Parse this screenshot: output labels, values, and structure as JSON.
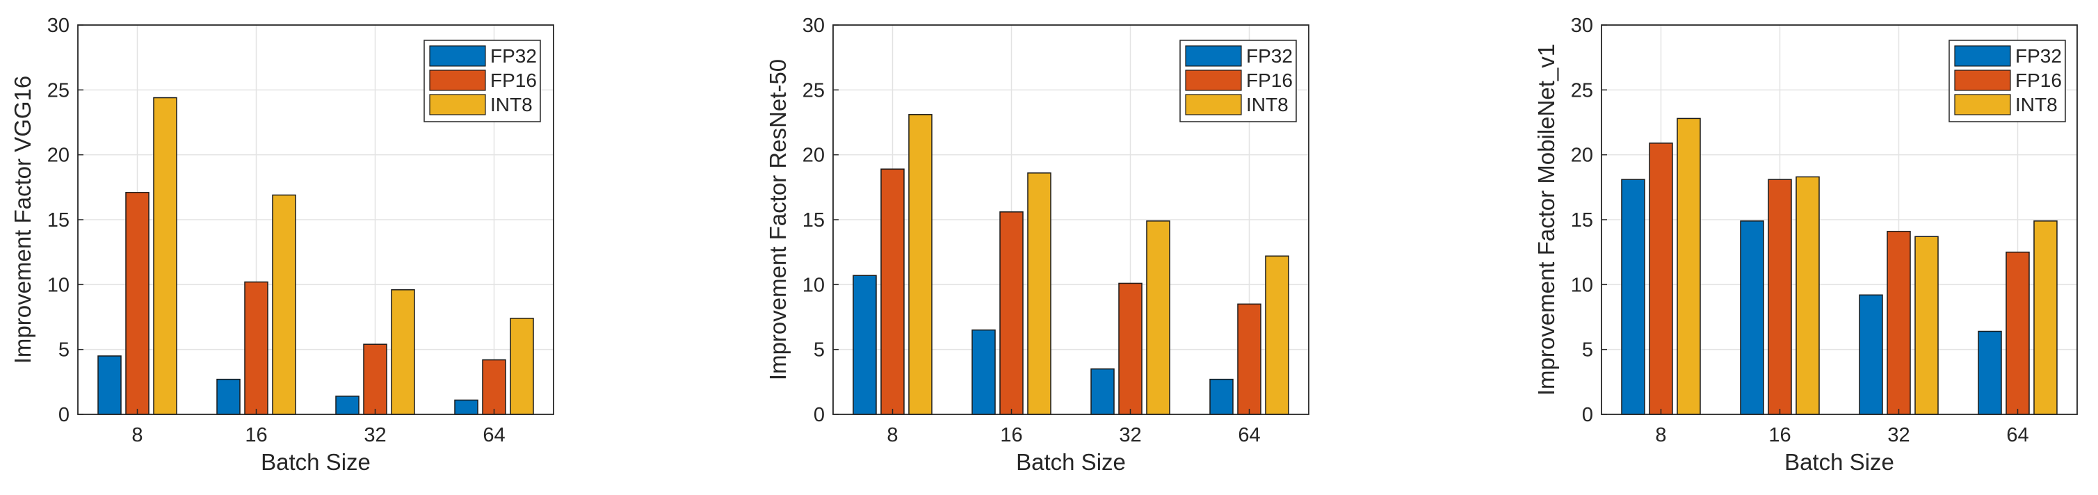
{
  "chart_data": [
    {
      "type": "bar",
      "title": "",
      "xlabel": "Batch Size",
      "ylabel": "Improvement Factor VGG16",
      "categories": [
        "8",
        "16",
        "32",
        "64"
      ],
      "ylim": [
        0,
        30
      ],
      "yticks": [
        "0",
        "5",
        "10",
        "15",
        "20",
        "25",
        "30"
      ],
      "grid": true,
      "legend_position": "top-right",
      "series": [
        {
          "name": "FP32",
          "values": [
            4.5,
            2.7,
            1.4,
            1.1
          ]
        },
        {
          "name": "FP16",
          "values": [
            17.1,
            10.2,
            5.4,
            4.2
          ]
        },
        {
          "name": "INT8",
          "values": [
            24.4,
            16.9,
            9.6,
            7.4
          ]
        }
      ]
    },
    {
      "type": "bar",
      "title": "",
      "xlabel": "Batch Size",
      "ylabel": "Improvement Factor ResNet-50",
      "categories": [
        "8",
        "16",
        "32",
        "64"
      ],
      "ylim": [
        0,
        30
      ],
      "yticks": [
        "0",
        "5",
        "10",
        "15",
        "20",
        "25",
        "30"
      ],
      "grid": true,
      "legend_position": "top-right",
      "series": [
        {
          "name": "FP32",
          "values": [
            10.7,
            6.5,
            3.5,
            2.7
          ]
        },
        {
          "name": "FP16",
          "values": [
            18.9,
            15.6,
            10.1,
            8.5
          ]
        },
        {
          "name": "INT8",
          "values": [
            23.1,
            18.6,
            14.9,
            12.2
          ]
        }
      ]
    },
    {
      "type": "bar",
      "title": "",
      "xlabel": "Batch Size",
      "ylabel": "Improvement Factor MobileNet_v1",
      "categories": [
        "8",
        "16",
        "32",
        "64"
      ],
      "ylim": [
        0,
        30
      ],
      "yticks": [
        "0",
        "5",
        "10",
        "15",
        "20",
        "25",
        "30"
      ],
      "grid": true,
      "legend_position": "top-right",
      "series": [
        {
          "name": "FP32",
          "values": [
            18.1,
            14.9,
            9.2,
            6.4
          ]
        },
        {
          "name": "FP16",
          "values": [
            20.9,
            18.1,
            14.1,
            12.5
          ]
        },
        {
          "name": "INT8",
          "values": [
            22.8,
            18.3,
            13.7,
            14.9
          ]
        }
      ]
    }
  ],
  "colors": {
    "FP32": "#0072BD",
    "FP16": "#D95319",
    "INT8": "#EDB120",
    "axis": "#262626",
    "grid": "#e3e3e3"
  }
}
